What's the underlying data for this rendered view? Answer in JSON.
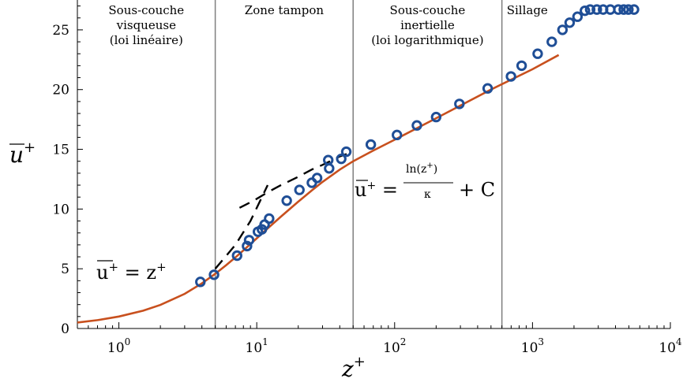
{
  "chart_data": {
    "type": "scatter",
    "title": "",
    "xlabel": {
      "base": "z",
      "sup": "+"
    },
    "ylabel": {
      "base": "u",
      "sup": "+"
    },
    "xscale": "log",
    "xlim": [
      0.5,
      10000
    ],
    "ylim": [
      0,
      27.5
    ],
    "x_ticks": [
      {
        "value": 1,
        "base": "10",
        "exp": "0"
      },
      {
        "value": 10,
        "base": "10",
        "exp": "1"
      },
      {
        "value": 100,
        "base": "10",
        "exp": "2"
      },
      {
        "value": 1000,
        "base": "10",
        "exp": "3"
      },
      {
        "value": 10000,
        "base": "10",
        "exp": "4"
      }
    ],
    "y_ticks": [
      0,
      5,
      10,
      15,
      20,
      25
    ],
    "grid": false,
    "regions": [
      {
        "lines": [
          "Sous-couche",
          "visqueuse",
          "(loi linéaire)"
        ],
        "x_from": 0.5,
        "x_to": 5
      },
      {
        "lines": [
          "Zone tampon"
        ],
        "x_from": 5,
        "x_to": 50
      },
      {
        "lines": [
          "Sous-couche",
          "inertielle",
          "(loi logarithmique)"
        ],
        "x_from": 50,
        "x_to": 600
      },
      {
        "lines": [
          "Sillage"
        ],
        "x_from": 600,
        "x_to": 1400
      }
    ],
    "dividers": [
      5,
      50,
      600
    ],
    "series": [
      {
        "kind": "markers",
        "color": "#1f4e96",
        "points": [
          [
            3.9,
            3.9
          ],
          [
            4.9,
            4.5
          ],
          [
            7.2,
            6.1
          ],
          [
            8.5,
            6.9
          ],
          [
            8.8,
            7.4
          ],
          [
            10.2,
            8.1
          ],
          [
            10.9,
            8.3
          ],
          [
            11.4,
            8.7
          ],
          [
            12.3,
            9.2
          ],
          [
            16.5,
            10.7
          ],
          [
            20.4,
            11.6
          ],
          [
            25.1,
            12.2
          ],
          [
            27.4,
            12.6
          ],
          [
            33.0,
            14.1
          ],
          [
            33.5,
            13.4
          ],
          [
            41.0,
            14.2
          ],
          [
            44.6,
            14.8
          ],
          [
            67.2,
            15.4
          ],
          [
            104,
            16.2
          ],
          [
            145,
            17.0
          ],
          [
            200,
            17.7
          ],
          [
            295,
            18.8
          ],
          [
            473,
            20.1
          ],
          [
            698,
            21.1
          ],
          [
            834,
            22.0
          ],
          [
            1090,
            23.0
          ],
          [
            1380,
            24.0
          ],
          [
            1650,
            25.0
          ],
          [
            1860,
            25.6
          ],
          [
            2120,
            26.1
          ],
          [
            2400,
            26.6
          ],
          [
            2620,
            26.7
          ],
          [
            2930,
            26.7
          ],
          [
            3250,
            26.7
          ],
          [
            3670,
            26.7
          ],
          [
            4190,
            26.7
          ],
          [
            4590,
            26.7
          ],
          [
            4960,
            26.7
          ],
          [
            5450,
            26.7
          ]
        ]
      },
      {
        "kind": "line",
        "color": "#c8501e",
        "points": [
          [
            0.5,
            0.5
          ],
          [
            0.7,
            0.7
          ],
          [
            1,
            1
          ],
          [
            1.5,
            1.49
          ],
          [
            2,
            1.97
          ],
          [
            3,
            2.9
          ],
          [
            4,
            3.78
          ],
          [
            5,
            4.58
          ],
          [
            6,
            5.3
          ],
          [
            7,
            5.95
          ],
          [
            8,
            6.54
          ],
          [
            10,
            7.55
          ],
          [
            12,
            8.38
          ],
          [
            15,
            9.37
          ],
          [
            20,
            10.62
          ],
          [
            25,
            11.55
          ],
          [
            30,
            12.27
          ],
          [
            40,
            13.3
          ],
          [
            50,
            14.0
          ],
          [
            70,
            14.9
          ],
          [
            100,
            15.8
          ],
          [
            200,
            17.6
          ],
          [
            500,
            20.0
          ],
          [
            1000,
            21.7
          ],
          [
            1550,
            22.9
          ]
        ]
      },
      {
        "kind": "dashed",
        "color": "#000000",
        "points": [
          [
            5,
            5
          ],
          [
            7,
            7
          ],
          [
            9,
            9
          ],
          [
            12,
            12
          ]
        ]
      },
      {
        "kind": "dashed",
        "color": "#000000",
        "points": [
          [
            7.5,
            10.1
          ],
          [
            9.5,
            10.7
          ],
          [
            12,
            11.4
          ],
          [
            15,
            12.0
          ],
          [
            20,
            12.7
          ],
          [
            25,
            13.3
          ],
          [
            30,
            13.7
          ],
          [
            40,
            14.4
          ],
          [
            50,
            14.8
          ]
        ]
      }
    ],
    "annotations": [
      {
        "text": "u⁺ = z⁺",
        "x": 2.2,
        "y": 4.6
      },
      {
        "text": "u⁺ = ln(z⁺) / κ + C",
        "x": 55,
        "y": 11.7
      }
    ]
  }
}
